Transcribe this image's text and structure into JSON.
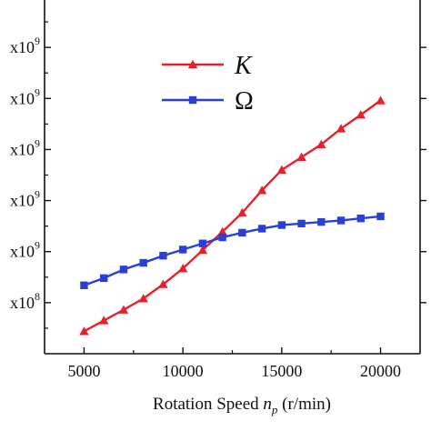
{
  "chart_data": {
    "type": "line",
    "title": "",
    "xlabel": {
      "prefix": "Rotation Speed ",
      "symbol": "n",
      "subscript": "p",
      "suffix": " (r/min)"
    },
    "ylabel": "",
    "x_ticks": [
      "5000",
      "10000",
      "15000",
      "20000"
    ],
    "y_tick_labels": [
      "x10",
      "x10",
      "x10",
      "x10",
      "x10",
      "x10"
    ],
    "y_tick_exponents": [
      "9",
      "9",
      "9",
      "9",
      "9",
      "8"
    ],
    "xlim": [
      3000,
      22000
    ],
    "ylim": [
      0,
      7
    ],
    "grid": false,
    "legend_position": "top-center",
    "x": [
      5000,
      6000,
      7000,
      8000,
      9000,
      10000,
      11000,
      12000,
      13000,
      14000,
      15000,
      16000,
      17000,
      18000,
      19000,
      20000
    ],
    "series": [
      {
        "name": "K",
        "color": "#e8202a",
        "marker": "triangle",
        "values": [
          0.44,
          0.65,
          0.86,
          1.08,
          1.36,
          1.67,
          2.03,
          2.39,
          2.76,
          3.2,
          3.6,
          3.85,
          4.1,
          4.41,
          4.68,
          4.96
        ]
      },
      {
        "name": "Ω",
        "color": "#2a3fd6",
        "marker": "square",
        "values": [
          1.34,
          1.48,
          1.65,
          1.78,
          1.92,
          2.04,
          2.16,
          2.28,
          2.37,
          2.45,
          2.52,
          2.55,
          2.58,
          2.61,
          2.65,
          2.69
        ]
      }
    ]
  }
}
